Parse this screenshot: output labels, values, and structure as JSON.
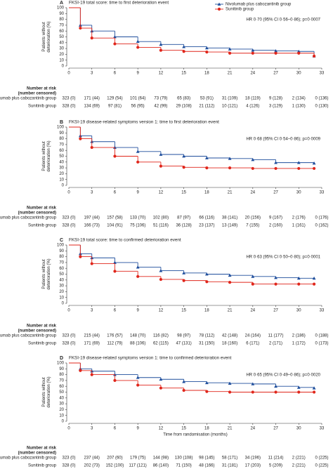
{
  "chart_data": [
    {
      "type": "line",
      "letter": "A",
      "title": "FKSI-19 total score: time to first deterioration event",
      "annotation": "HR 0·70 (95% CI 0·56–0·86); p=0·0007",
      "legend": true,
      "y_label": [
        "Patients without",
        "deterioration (%)"
      ],
      "risk_label": [
        "Number at risk",
        "(number censored)"
      ],
      "xlim": [
        0,
        33
      ],
      "ylim": [
        0,
        100
      ],
      "xticks": [
        0,
        3,
        6,
        9,
        12,
        15,
        18,
        21,
        24,
        27,
        30,
        33
      ],
      "yticks": [
        0,
        10,
        20,
        30,
        40,
        50,
        60,
        70,
        80,
        90,
        100
      ],
      "x": [
        0,
        1.5,
        3,
        6,
        9,
        12,
        15,
        18,
        21,
        24,
        27,
        30,
        32
      ],
      "series": [
        {
          "name": "Nivolumab plus cabozantinib group",
          "color": "#1f4e9c",
          "marker": "triangle",
          "values": [
            100,
            70,
            60,
            50,
            42,
            37,
            33,
            31,
            29,
            27,
            26,
            25,
            17
          ],
          "at_risk": [
            "323 (0)",
            "171 (44)",
            "129 (54)",
            "101 (64)",
            "73 (79)",
            "65 (83)",
            "53 (91)",
            "31 (109)",
            "18 (119)",
            "9 (128)",
            "2 (134)",
            "0 (136)"
          ]
        },
        {
          "name": "Sunitinib group",
          "color": "#e0261b",
          "marker": "circle",
          "values": [
            100,
            65,
            48,
            38,
            32,
            27,
            25,
            24,
            22,
            22,
            22,
            22,
            17
          ],
          "at_risk": [
            "328 (0)",
            "134 (69)",
            "97 (81)",
            "56 (95)",
            "42 (99)",
            "29 (108)",
            "21 (112)",
            "10 (121)",
            "4 (126)",
            "3 (129)",
            "1 (130)",
            "0 (130)"
          ]
        }
      ]
    },
    {
      "type": "line",
      "letter": "B",
      "title": "FKSI-19 disease-related symptoms version 1: time to first deterioration event",
      "annotation": "HR 0·68 (95% CI 0·54–0·86); p=0·0009",
      "legend": false,
      "y_label": [
        "Patients without",
        "deterioration (%)"
      ],
      "risk_label": [
        "Number at risk",
        "(number censored)"
      ],
      "xlim": [
        0,
        33
      ],
      "ylim": [
        0,
        100
      ],
      "xticks": [
        0,
        3,
        6,
        9,
        12,
        15,
        18,
        21,
        24,
        27,
        30,
        33
      ],
      "yticks": [
        0,
        10,
        20,
        30,
        40,
        50,
        60,
        70,
        80,
        90,
        100
      ],
      "x": [
        0,
        1.5,
        3,
        6,
        9,
        12,
        15,
        18,
        21,
        24,
        27,
        30,
        32
      ],
      "series": [
        {
          "name": "Nivolumab plus cabozantinib group",
          "color": "#1f4e9c",
          "marker": "triangle",
          "values": [
            100,
            85,
            75,
            65,
            58,
            53,
            50,
            47,
            46,
            44,
            39,
            39,
            38
          ],
          "at_risk": [
            "323 (0)",
            "197 (44)",
            "157 (58)",
            "133 (70)",
            "102 (80)",
            "87 (97)",
            "66 (116)",
            "38 (141)",
            "20 (156)",
            "9 (167)",
            "2 (176)",
            "0 (176)"
          ]
        },
        {
          "name": "Sunitinib group",
          "color": "#e0261b",
          "marker": "circle",
          "values": [
            100,
            80,
            65,
            50,
            40,
            33,
            31,
            30,
            30,
            29,
            29,
            29,
            29
          ],
          "at_risk": [
            "328 (0)",
            "166 (73)",
            "104 (91)",
            "75 (106)",
            "51 (116)",
            "36 (128)",
            "23 (137)",
            "13 (149)",
            "7 (155)",
            "2 (160)",
            "1 (161)",
            "0 (162)"
          ]
        }
      ]
    },
    {
      "type": "line",
      "letter": "C",
      "title": "FKSI-19 total score: time to confirmed deterioration event",
      "annotation": "HR 0·63 (95% CI 0·50–0·80); p=0·0001",
      "legend": false,
      "y_label": [
        "Patients without",
        "deterioration (%)"
      ],
      "risk_label": [
        "Number at risk",
        "(number censored)"
      ],
      "xlim": [
        0,
        33
      ],
      "ylim": [
        0,
        100
      ],
      "xticks": [
        0,
        3,
        6,
        9,
        12,
        15,
        18,
        21,
        24,
        27,
        30,
        33
      ],
      "yticks": [
        0,
        10,
        20,
        30,
        40,
        50,
        60,
        70,
        80,
        90,
        100
      ],
      "x": [
        0,
        1.5,
        3,
        6,
        9,
        12,
        15,
        18,
        21,
        24,
        27,
        30,
        32
      ],
      "series": [
        {
          "name": "Nivolumab plus cabozantinib group",
          "color": "#1f4e9c",
          "marker": "triangle",
          "values": [
            100,
            85,
            78,
            70,
            62,
            56,
            52,
            50,
            48,
            46,
            44,
            43,
            43
          ],
          "at_risk": [
            "323 (0)",
            "215 (44)",
            "176 (57)",
            "148 (70)",
            "116 (82)",
            "98 (97)",
            "78 (112)",
            "42 (148)",
            "24 (164)",
            "11 (177)",
            "2 (186)",
            "0 (188)"
          ]
        },
        {
          "name": "Sunitinib group",
          "color": "#e0261b",
          "marker": "circle",
          "values": [
            100,
            80,
            68,
            55,
            46,
            41,
            39,
            37,
            36,
            33,
            33,
            33,
            33
          ],
          "at_risk": [
            "328 (0)",
            "171 (69)",
            "112 (79)",
            "88 (106)",
            "62 (115)",
            "47 (131)",
            "31 (150)",
            "18 (160)",
            "6 (171)",
            "2 (171)",
            "1 (172)",
            "0 (173)"
          ]
        }
      ]
    },
    {
      "type": "line",
      "letter": "D",
      "title": "FKSI-19 disease-related symptoms version 1: time to confirmed deterioration event",
      "annotation": "HR 0·65 (95% CI 0·49–0·86); p=0·0020",
      "legend": false,
      "y_label": [
        "Patients without",
        "deterioration (%)"
      ],
      "risk_label": [
        "Number at risk",
        "(number censored)"
      ],
      "x_label": "Time from randomisation (months)",
      "xlim": [
        0,
        33
      ],
      "ylim": [
        0,
        100
      ],
      "xticks": [
        0,
        3,
        6,
        9,
        12,
        15,
        18,
        21,
        24,
        27,
        30,
        33
      ],
      "yticks": [
        0,
        10,
        20,
        30,
        40,
        50,
        60,
        70,
        80,
        90,
        100
      ],
      "x": [
        0,
        1.5,
        3,
        6,
        9,
        12,
        15,
        18,
        21,
        24,
        27,
        30,
        32
      ],
      "series": [
        {
          "name": "Nivolumab plus cabozantinib group",
          "color": "#1f4e9c",
          "marker": "triangle",
          "values": [
            100,
            90,
            86,
            80,
            75,
            72,
            68,
            66,
            65,
            64,
            60,
            58,
            57
          ],
          "at_risk": [
            "323 (0)",
            "237 (44)",
            "207 (60)",
            "179 (75)",
            "144 (98)",
            "130 (108)",
            "98 (145)",
            "58 (171)",
            "34 (196)",
            "11 (214)",
            "2 (221)",
            "0 (225)"
          ]
        },
        {
          "name": "Sunitinib group",
          "color": "#e0261b",
          "marker": "circle",
          "values": [
            100,
            87,
            80,
            70,
            62,
            57,
            53,
            51,
            50,
            50,
            50,
            50,
            50
          ],
          "at_risk": [
            "328 (0)",
            "202 (73)",
            "152 (100)",
            "117 (121)",
            "86 (140)",
            "71 (150)",
            "48 (166)",
            "31 (181)",
            "17 (203)",
            "5 (209)",
            "2 (221)",
            "0 (225)"
          ]
        }
      ]
    }
  ]
}
